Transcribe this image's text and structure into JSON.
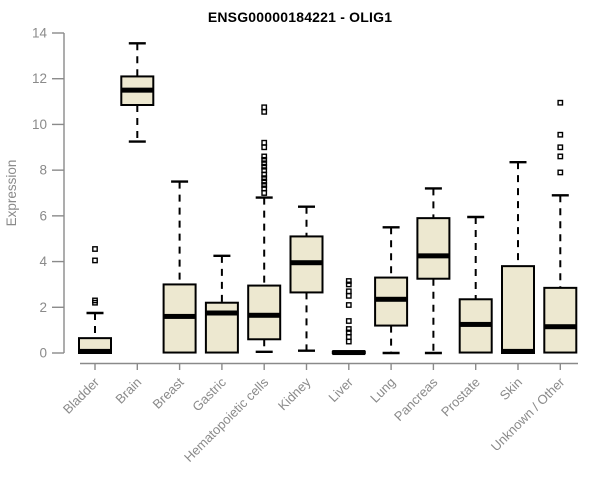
{
  "chart_data": {
    "type": "box",
    "title": "ENSG00000184221 - OLIG1",
    "xlabel": "",
    "ylabel": "Expression",
    "ylim": [
      0,
      14
    ],
    "yticks": [
      0,
      2,
      4,
      6,
      8,
      10,
      12,
      14
    ],
    "grid": false,
    "legend": "none",
    "categories": [
      "Bladder",
      "Brain",
      "Breast",
      "Gastric",
      "Hematopoietic cells",
      "Kidney",
      "Liver",
      "Lung",
      "Pancreas",
      "Prostate",
      "Skin",
      "Unknown / Other"
    ],
    "series": [
      {
        "name": "Bladder",
        "low": 0,
        "q1": 0,
        "median": 0.07,
        "q3": 0.65,
        "high": 1.75,
        "outliers": [
          2.2,
          2.3,
          4.05,
          4.55
        ]
      },
      {
        "name": "Brain",
        "low": 9.25,
        "q1": 10.85,
        "median": 11.5,
        "q3": 12.1,
        "high": 13.55,
        "outliers": []
      },
      {
        "name": "Breast",
        "low": 0,
        "q1": 0.02,
        "median": 1.6,
        "q3": 3.0,
        "high": 7.5,
        "outliers": []
      },
      {
        "name": "Gastric",
        "low": 0,
        "q1": 0.02,
        "median": 1.75,
        "q3": 2.2,
        "high": 4.25,
        "outliers": []
      },
      {
        "name": "Hematopoietic cells",
        "low": 0.05,
        "q1": 0.6,
        "median": 1.65,
        "q3": 2.95,
        "high": 6.8,
        "outliers": [
          7.0,
          7.2,
          7.35,
          7.5,
          7.65,
          7.8,
          8.0,
          8.15,
          8.3,
          8.45,
          8.6,
          9.0,
          9.2,
          10.55,
          10.75
        ]
      },
      {
        "name": "Kidney",
        "low": 0.1,
        "q1": 2.65,
        "median": 3.95,
        "q3": 5.1,
        "high": 6.4,
        "outliers": []
      },
      {
        "name": "Liver",
        "low": 0,
        "q1": 0,
        "median": 0.02,
        "q3": 0.05,
        "high": 0.05,
        "outliers": [
          0.5,
          0.7,
          0.9,
          1.05,
          1.4,
          2.1,
          2.5,
          2.7,
          3.0,
          3.15
        ]
      },
      {
        "name": "Lung",
        "low": 0,
        "q1": 1.2,
        "median": 2.35,
        "q3": 3.3,
        "high": 5.5,
        "outliers": []
      },
      {
        "name": "Pancreas",
        "low": 0,
        "q1": 3.25,
        "median": 4.25,
        "q3": 5.9,
        "high": 7.2,
        "outliers": []
      },
      {
        "name": "Prostate",
        "low": 0,
        "q1": 0.02,
        "median": 1.25,
        "q3": 2.35,
        "high": 5.95,
        "outliers": []
      },
      {
        "name": "Skin",
        "low": 0,
        "q1": 0,
        "median": 0.07,
        "q3": 3.8,
        "high": 8.35,
        "outliers": []
      },
      {
        "name": "Unknown / Other",
        "low": 0,
        "q1": 0.02,
        "median": 1.15,
        "q3": 2.85,
        "high": 6.9,
        "outliers": [
          7.9,
          8.6,
          9.0,
          9.55,
          10.95
        ]
      }
    ],
    "colors": {
      "box_fill": "#EDE8D0",
      "box_stroke": "#000000",
      "median": "#000000",
      "whisker": "#000000",
      "outlier": "#000000",
      "axis": "#8A8A8A",
      "tick_label": "#8A8A8A",
      "title": "#000000",
      "background": "#FFFFFF"
    }
  }
}
